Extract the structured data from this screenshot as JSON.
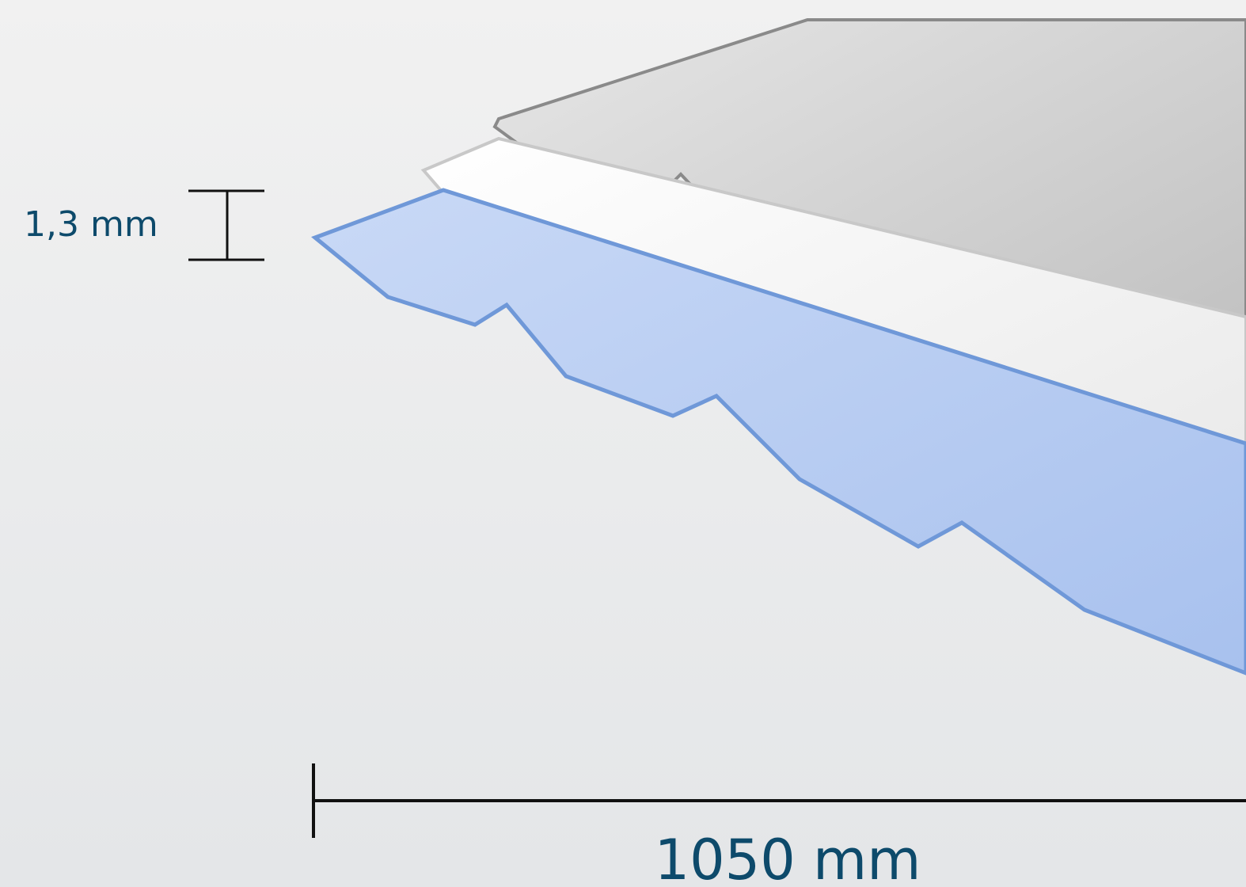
{
  "labels": {
    "thickness": "1,3 mm",
    "width": "1050 mm"
  }
}
